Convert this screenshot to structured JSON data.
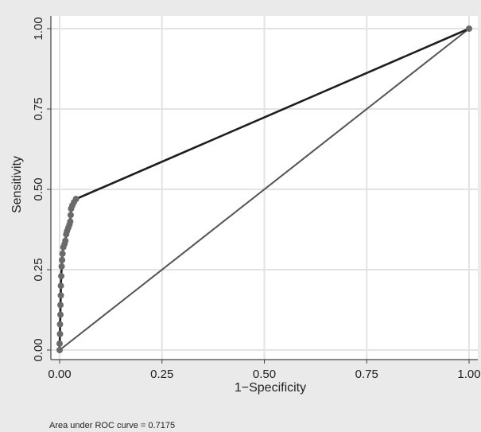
{
  "chart_data": {
    "type": "line",
    "xlabel": "1−Specificity",
    "ylabel": "Sensitivity",
    "xlim": [
      0,
      1
    ],
    "ylim": [
      0,
      1
    ],
    "x_ticks": [
      "0.00",
      "0.25",
      "0.50",
      "0.75",
      "1.00"
    ],
    "y_ticks": [
      "0.00",
      "0.25",
      "0.50",
      "0.75",
      "1.00"
    ],
    "grid": true,
    "note": "Area under ROC curve = 0.7175",
    "series": [
      {
        "values": [
          {
            "x": 0.0,
            "y": 0.0
          },
          {
            "x": 0.0,
            "y": 0.02
          },
          {
            "x": 0.001,
            "y": 0.05
          },
          {
            "x": 0.001,
            "y": 0.08
          },
          {
            "x": 0.002,
            "y": 0.11
          },
          {
            "x": 0.002,
            "y": 0.14
          },
          {
            "x": 0.003,
            "y": 0.17
          },
          {
            "x": 0.003,
            "y": 0.2
          },
          {
            "x": 0.004,
            "y": 0.23
          },
          {
            "x": 0.005,
            "y": 0.26
          },
          {
            "x": 0.006,
            "y": 0.28
          },
          {
            "x": 0.007,
            "y": 0.3
          },
          {
            "x": 0.009,
            "y": 0.32
          },
          {
            "x": 0.012,
            "y": 0.33
          },
          {
            "x": 0.014,
            "y": 0.34
          },
          {
            "x": 0.016,
            "y": 0.36
          },
          {
            "x": 0.018,
            "y": 0.37
          },
          {
            "x": 0.021,
            "y": 0.38
          },
          {
            "x": 0.024,
            "y": 0.39
          },
          {
            "x": 0.026,
            "y": 0.4
          },
          {
            "x": 0.027,
            "y": 0.42
          },
          {
            "x": 0.028,
            "y": 0.44
          },
          {
            "x": 0.031,
            "y": 0.45
          },
          {
            "x": 0.035,
            "y": 0.46
          },
          {
            "x": 0.04,
            "y": 0.47
          },
          {
            "x": 1.0,
            "y": 1.0
          }
        ]
      },
      {
        "values": [
          {
            "x": 0.0,
            "y": 0.0
          },
          {
            "x": 1.0,
            "y": 1.0
          }
        ]
      }
    ],
    "colors": {
      "panel": "#eaeaea",
      "plot_bg": "#ffffff",
      "grid": "#e3e3e3",
      "axis": "#444444",
      "roc_line": "#1e1e1e",
      "roc_marker": "#6a6a6a",
      "reference_line": "#555555"
    }
  }
}
